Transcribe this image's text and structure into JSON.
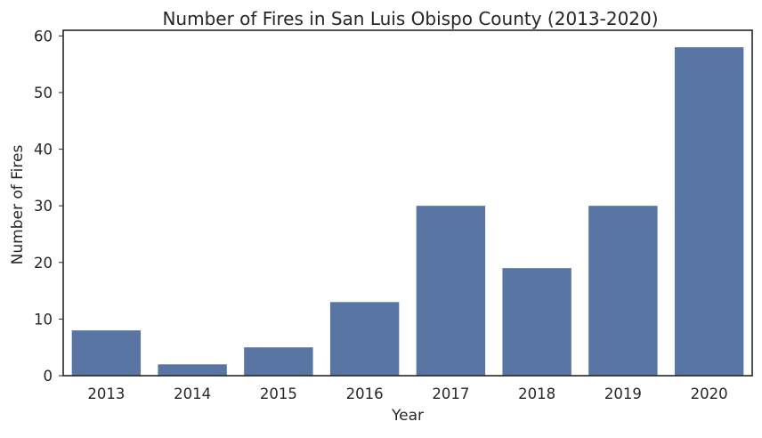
{
  "chart_data": {
    "type": "bar",
    "title": "Number of Fires in San Luis Obispo County (2013-2020)",
    "xlabel": "Year",
    "ylabel": "Number of Fires",
    "categories": [
      "2013",
      "2014",
      "2015",
      "2016",
      "2017",
      "2018",
      "2019",
      "2020"
    ],
    "values": [
      8,
      2,
      5,
      13,
      30,
      19,
      30,
      58
    ],
    "ylim": [
      0,
      61
    ],
    "yticks": [
      0,
      10,
      20,
      30,
      40,
      50,
      60
    ],
    "grid": false,
    "bar_color": "#5875a4",
    "axis_color": "#262626"
  }
}
